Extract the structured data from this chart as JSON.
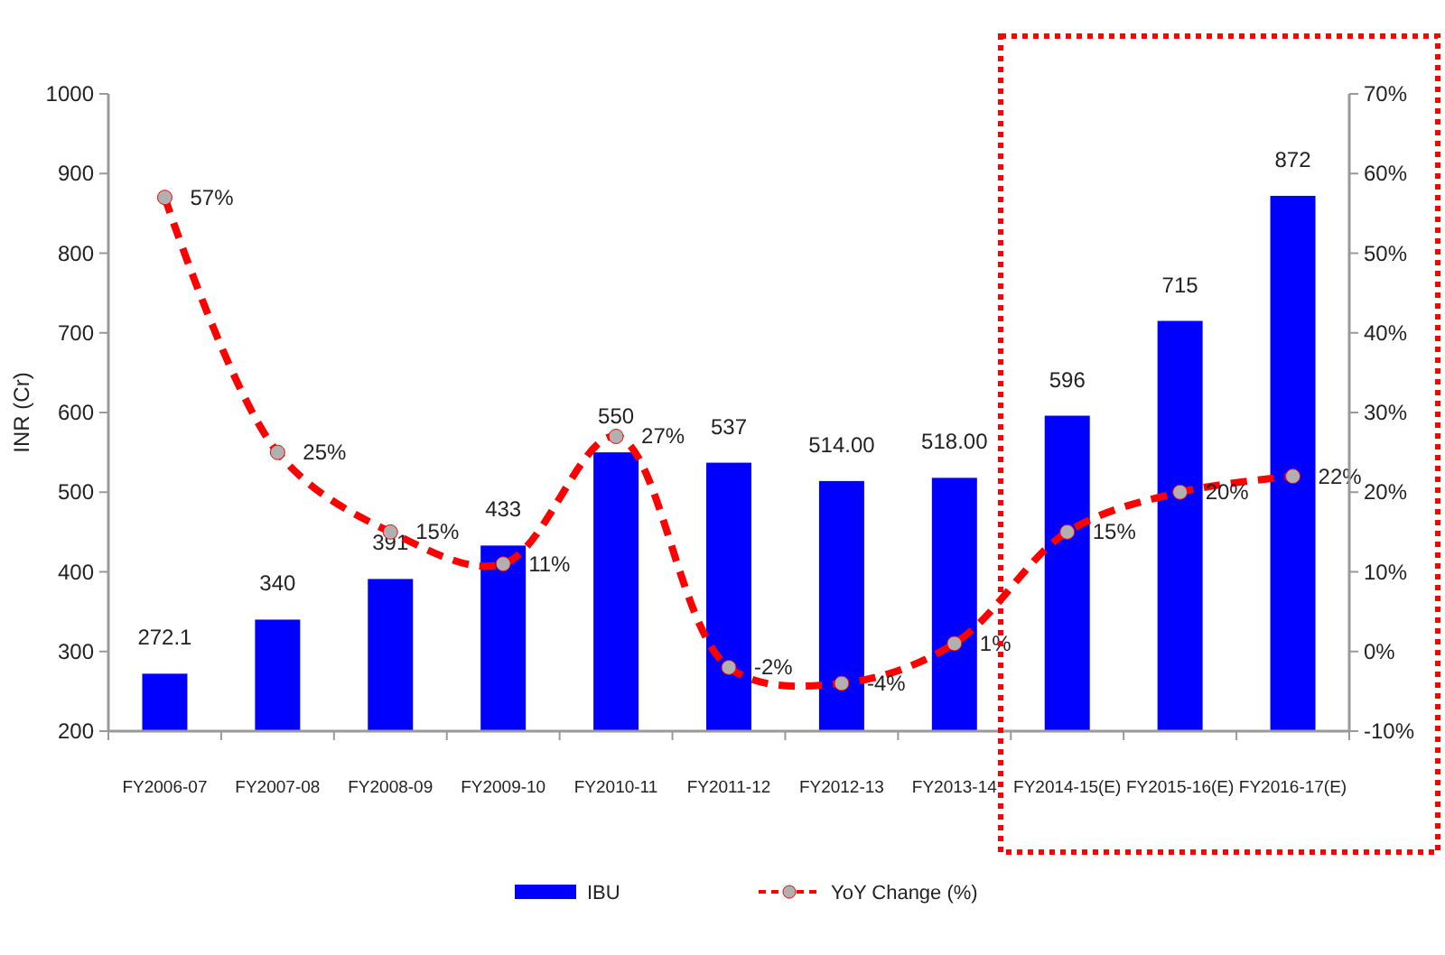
{
  "chart_data": {
    "type": "bar",
    "ylabel": "INR (Cr)",
    "categories": [
      "FY2006-07",
      "FY2007-08",
      "FY2008-09",
      "FY2009-10",
      "FY2010-11",
      "FY2011-12",
      "FY2012-13",
      "FY2013-14",
      "FY2014-15(E)",
      "FY2015-16(E)",
      "FY2016-17(E)"
    ],
    "series": [
      {
        "name": "IBU",
        "color": "#0000ff",
        "values": [
          272.1,
          340,
          391,
          433,
          550,
          537,
          514,
          518,
          596,
          715,
          872
        ],
        "value_labels": [
          "272.1",
          "340",
          "391",
          "433",
          "550",
          "537",
          "514.00",
          "518.00",
          "596",
          "715",
          "872"
        ]
      },
      {
        "name": "YoY Change (%)",
        "type": "line",
        "axis": "y2",
        "color": "#ff0000",
        "marker": "circle",
        "line_style": "dashed",
        "values": [
          57,
          25,
          15,
          11,
          27,
          -2,
          -4,
          1,
          15,
          20,
          22
        ],
        "value_labels": [
          "57%",
          "25%",
          "15%",
          "11%",
          "27%",
          "-2%",
          "-4%",
          "1%",
          "15%",
          "20%",
          "22%"
        ]
      }
    ],
    "ylim": [
      200,
      1000
    ],
    "yticks": [
      200,
      300,
      400,
      500,
      600,
      700,
      800,
      900,
      1000
    ],
    "y2lim": [
      -10,
      70
    ],
    "y2ticks": [
      {
        "value": -10,
        "label": "-10%"
      },
      {
        "value": 0,
        "label": "0%"
      },
      {
        "value": 10,
        "label": "10%"
      },
      {
        "value": 20,
        "label": "20%"
      },
      {
        "value": 30,
        "label": "30%"
      },
      {
        "value": 40,
        "label": "40%"
      },
      {
        "value": 50,
        "label": "50%"
      },
      {
        "value": 60,
        "label": "60%"
      },
      {
        "value": 70,
        "label": "70%"
      }
    ],
    "grid": false,
    "legend": "bottom"
  }
}
